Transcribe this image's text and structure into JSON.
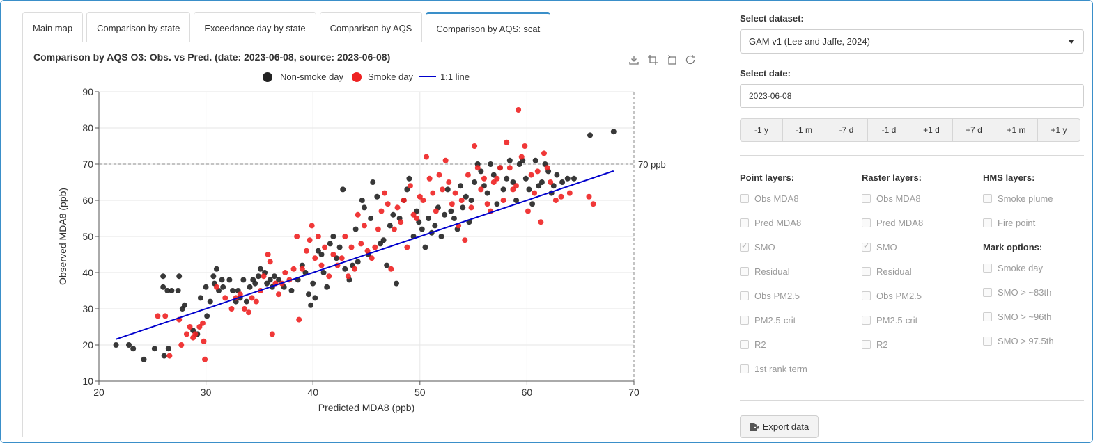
{
  "tabs": [
    "Main map",
    "Comparison by state",
    "Exceedance day by state",
    "Comparison by AQS",
    "Comparison by AQS: scat"
  ],
  "active_tab": 4,
  "chart_title": "Comparison by AQS O3: Obs. vs Pred. (date: 2023-06-08, source: 2023-06-08)",
  "toolbox": [
    "download-icon",
    "zoom-icon",
    "zoom-reset-icon",
    "restore-icon"
  ],
  "controls": {
    "dataset_label": "Select dataset:",
    "dataset_value": "GAM v1 (Lee and Jaffe, 2024)",
    "date_label": "Select date:",
    "date_value": "2023-06-08",
    "steps": [
      "-1 y",
      "-1 m",
      "-7 d",
      "-1 d",
      "+1 d",
      "+7 d",
      "+1 m",
      "+1 y"
    ],
    "point_layers_label": "Point layers:",
    "point_layers": [
      {
        "label": "Obs MDA8",
        "checked": false
      },
      {
        "label": "Pred MDA8",
        "checked": false
      },
      {
        "label": "SMO",
        "checked": true
      },
      {
        "label": "Residual",
        "checked": false
      },
      {
        "label": "Obs PM2.5",
        "checked": false
      },
      {
        "label": "PM2.5-crit",
        "checked": false
      },
      {
        "label": "R2",
        "checked": false
      },
      {
        "label": "1st rank term",
        "checked": false
      }
    ],
    "raster_layers_label": "Raster layers:",
    "raster_layers": [
      {
        "label": "Obs MDA8",
        "checked": false
      },
      {
        "label": "Pred MDA8",
        "checked": false
      },
      {
        "label": "SMO",
        "checked": true
      },
      {
        "label": "Residual",
        "checked": false
      },
      {
        "label": "Obs PM2.5",
        "checked": false
      },
      {
        "label": "PM2.5-crit",
        "checked": false
      },
      {
        "label": "R2",
        "checked": false
      }
    ],
    "hms_layers_label": "HMS layers:",
    "hms_layers": [
      {
        "label": "Smoke plume",
        "checked": false
      },
      {
        "label": "Fire point",
        "checked": false
      }
    ],
    "mark_options_label": "Mark options:",
    "mark_options": [
      {
        "label": "Smoke day",
        "checked": false
      },
      {
        "label": "SMO > ~83th",
        "checked": false
      },
      {
        "label": "SMO > ~96th",
        "checked": false
      },
      {
        "label": "SMO > 97.5th",
        "checked": false
      }
    ],
    "export_label": "Export data"
  },
  "chart_data": {
    "type": "scatter",
    "xlabel": "Predicted MDA8 (ppb)",
    "ylabel": "Observed MDA8 (ppb)",
    "xlim": [
      20,
      70
    ],
    "ylim": [
      10,
      90
    ],
    "xticks": [
      20,
      30,
      40,
      50,
      60,
      70
    ],
    "yticks": [
      10,
      20,
      30,
      40,
      50,
      60,
      70,
      80,
      90
    ],
    "grid": true,
    "legend_position": "top",
    "threshold": {
      "value": 70,
      "label": "70 ppb"
    },
    "colors": {
      "non_smoke": "#222222",
      "smoke": "#ee2222",
      "line": "#0000cc"
    },
    "series": [
      {
        "name": "Non-smoke day",
        "points": [
          [
            21.6,
            20
          ],
          [
            22.8,
            20
          ],
          [
            23.2,
            19
          ],
          [
            24.2,
            16
          ],
          [
            25.2,
            19
          ],
          [
            26.1,
            17
          ],
          [
            26.5,
            19
          ],
          [
            26,
            39
          ],
          [
            26.4,
            35
          ],
          [
            26.8,
            35
          ],
          [
            27.4,
            35
          ],
          [
            27.5,
            39
          ],
          [
            26,
            36
          ],
          [
            27.8,
            30
          ],
          [
            28,
            31
          ],
          [
            28.8,
            24
          ],
          [
            29.2,
            23
          ],
          [
            29.5,
            33
          ],
          [
            30,
            36
          ],
          [
            30.1,
            28
          ],
          [
            30.4,
            32
          ],
          [
            30.8,
            37
          ],
          [
            30.7,
            39
          ],
          [
            31,
            41
          ],
          [
            31.2,
            35
          ],
          [
            31.5,
            38
          ],
          [
            31.6,
            36
          ],
          [
            32.2,
            38
          ],
          [
            32.5,
            35
          ],
          [
            32.8,
            32
          ],
          [
            33,
            35
          ],
          [
            33.2,
            33
          ],
          [
            33.5,
            38
          ],
          [
            33.8,
            32
          ],
          [
            34.1,
            36
          ],
          [
            34.4,
            38
          ],
          [
            34.6,
            37
          ],
          [
            34.9,
            39
          ],
          [
            35.1,
            41
          ],
          [
            35.5,
            40
          ],
          [
            35.7,
            37
          ],
          [
            36,
            38
          ],
          [
            36.2,
            36
          ],
          [
            36.4,
            39
          ],
          [
            36.8,
            38
          ],
          [
            37.3,
            36
          ],
          [
            38,
            35
          ],
          [
            38.6,
            38
          ],
          [
            39,
            42
          ],
          [
            39.3,
            40
          ],
          [
            39.6,
            34
          ],
          [
            39.8,
            31
          ],
          [
            40,
            37
          ],
          [
            40.2,
            33
          ],
          [
            40.5,
            46
          ],
          [
            40.8,
            45
          ],
          [
            41,
            40
          ],
          [
            41.3,
            36
          ],
          [
            41.6,
            48
          ],
          [
            41.9,
            50
          ],
          [
            42.2,
            44
          ],
          [
            42.5,
            47
          ],
          [
            42.8,
            63
          ],
          [
            43,
            41
          ],
          [
            43.4,
            38
          ],
          [
            43.7,
            42
          ],
          [
            44,
            52
          ],
          [
            44.2,
            43
          ],
          [
            44.6,
            60
          ],
          [
            44.8,
            58
          ],
          [
            45.2,
            45
          ],
          [
            45.4,
            55
          ],
          [
            45.6,
            65
          ],
          [
            46,
            61
          ],
          [
            46.3,
            48
          ],
          [
            46.6,
            49
          ],
          [
            46.9,
            42
          ],
          [
            47.2,
            53
          ],
          [
            47.5,
            56
          ],
          [
            47.8,
            37
          ],
          [
            48.1,
            55
          ],
          [
            48.5,
            60
          ],
          [
            48.8,
            63
          ],
          [
            49,
            66
          ],
          [
            49.4,
            50
          ],
          [
            49.7,
            57
          ],
          [
            49.9,
            54
          ],
          [
            50.2,
            52
          ],
          [
            50.5,
            47
          ],
          [
            50.8,
            55
          ],
          [
            51.1,
            51
          ],
          [
            51.4,
            53
          ],
          [
            51.7,
            58
          ],
          [
            52,
            50
          ],
          [
            52.3,
            56
          ],
          [
            52.6,
            63
          ],
          [
            52.9,
            57
          ],
          [
            53.2,
            55
          ],
          [
            53.5,
            52
          ],
          [
            53.8,
            64
          ],
          [
            54,
            58
          ],
          [
            54.3,
            61
          ],
          [
            54.6,
            54
          ],
          [
            54.8,
            60
          ],
          [
            55.1,
            65
          ],
          [
            55.4,
            70
          ],
          [
            55.7,
            68
          ],
          [
            56,
            64
          ],
          [
            56.3,
            62
          ],
          [
            56.6,
            70
          ],
          [
            56.9,
            67
          ],
          [
            57.2,
            59
          ],
          [
            57.5,
            69
          ],
          [
            57.8,
            63
          ],
          [
            58.1,
            66
          ],
          [
            58.4,
            71
          ],
          [
            58.7,
            65
          ],
          [
            59,
            60
          ],
          [
            59.3,
            70
          ],
          [
            59.6,
            71
          ],
          [
            59.9,
            66
          ],
          [
            60.2,
            63
          ],
          [
            60.5,
            59
          ],
          [
            60.8,
            71
          ],
          [
            61.1,
            64
          ],
          [
            61.4,
            65
          ],
          [
            61.7,
            70
          ],
          [
            62,
            68
          ],
          [
            62.3,
            62
          ],
          [
            62.5,
            64
          ],
          [
            62.8,
            67
          ],
          [
            63.3,
            65
          ],
          [
            63.8,
            66
          ],
          [
            64.4,
            66
          ],
          [
            65.9,
            78
          ],
          [
            68.1,
            79
          ]
        ]
      },
      {
        "name": "Smoke day",
        "points": [
          [
            25.5,
            28
          ],
          [
            26.2,
            28
          ],
          [
            26.6,
            17
          ],
          [
            27.5,
            27
          ],
          [
            27.7,
            20
          ],
          [
            28.2,
            23
          ],
          [
            28.5,
            25
          ],
          [
            28.8,
            22
          ],
          [
            29,
            23
          ],
          [
            29.4,
            25
          ],
          [
            29.8,
            21
          ],
          [
            29.9,
            16
          ],
          [
            29.7,
            26
          ],
          [
            31,
            36
          ],
          [
            31.8,
            33
          ],
          [
            32.4,
            30
          ],
          [
            32.8,
            33
          ],
          [
            33.2,
            34
          ],
          [
            33.6,
            30
          ],
          [
            34,
            29
          ],
          [
            34.3,
            33
          ],
          [
            34.7,
            32
          ],
          [
            35.1,
            35
          ],
          [
            35.4,
            39
          ],
          [
            35.8,
            45
          ],
          [
            36,
            43
          ],
          [
            36.2,
            23
          ],
          [
            36.5,
            37
          ],
          [
            36.8,
            34
          ],
          [
            37.1,
            37
          ],
          [
            37.4,
            40
          ],
          [
            37.8,
            38
          ],
          [
            38.2,
            41
          ],
          [
            38.5,
            50
          ],
          [
            38.7,
            27
          ],
          [
            39,
            41
          ],
          [
            39.4,
            46
          ],
          [
            39.7,
            49
          ],
          [
            39.9,
            53
          ],
          [
            40.2,
            44
          ],
          [
            40.5,
            50
          ],
          [
            40.8,
            42
          ],
          [
            41.1,
            47
          ],
          [
            41.5,
            39
          ],
          [
            41.9,
            45
          ],
          [
            42.3,
            42
          ],
          [
            42.7,
            44
          ],
          [
            43,
            50
          ],
          [
            43.3,
            39
          ],
          [
            43.6,
            47
          ],
          [
            43.9,
            41
          ],
          [
            44.2,
            56
          ],
          [
            44.5,
            48
          ],
          [
            44.8,
            53
          ],
          [
            45.1,
            46
          ],
          [
            45.5,
            44
          ],
          [
            45.8,
            47
          ],
          [
            46.1,
            52
          ],
          [
            46.4,
            57
          ],
          [
            46.7,
            62
          ],
          [
            47,
            59
          ],
          [
            47.3,
            41
          ],
          [
            47.6,
            52
          ],
          [
            47.9,
            58
          ],
          [
            48.2,
            54
          ],
          [
            48.5,
            60
          ],
          [
            48.8,
            47
          ],
          [
            49.1,
            64
          ],
          [
            49.4,
            56
          ],
          [
            49.7,
            55
          ],
          [
            50,
            61
          ],
          [
            50.3,
            60
          ],
          [
            50.6,
            72
          ],
          [
            50.9,
            66
          ],
          [
            51.2,
            62
          ],
          [
            51.5,
            57
          ],
          [
            51.8,
            67
          ],
          [
            52.1,
            63
          ],
          [
            52.4,
            71
          ],
          [
            52.7,
            65
          ],
          [
            53,
            59
          ],
          [
            53.3,
            62
          ],
          [
            53.6,
            53
          ],
          [
            53.9,
            60
          ],
          [
            54.2,
            49
          ],
          [
            54.5,
            67
          ],
          [
            54.8,
            58
          ],
          [
            55.1,
            75
          ],
          [
            55.4,
            69
          ],
          [
            55.7,
            63
          ],
          [
            56,
            66
          ],
          [
            56.3,
            59
          ],
          [
            56.6,
            57
          ],
          [
            56.9,
            65
          ],
          [
            57.2,
            66
          ],
          [
            57.5,
            69
          ],
          [
            57.8,
            60
          ],
          [
            58.1,
            76
          ],
          [
            58.4,
            69
          ],
          [
            58.7,
            63
          ],
          [
            59,
            64
          ],
          [
            59.2,
            85
          ],
          [
            59.5,
            72
          ],
          [
            59.8,
            75
          ],
          [
            60.1,
            57
          ],
          [
            60.4,
            67
          ],
          [
            60.7,
            62
          ],
          [
            61,
            68
          ],
          [
            61.3,
            54
          ],
          [
            61.6,
            73
          ],
          [
            61.9,
            69
          ],
          [
            62.2,
            65
          ],
          [
            62.7,
            60
          ],
          [
            63.2,
            61
          ],
          [
            64,
            62
          ],
          [
            65.8,
            61
          ],
          [
            66.2,
            59
          ]
        ]
      },
      {
        "name": "1:1 line",
        "points": [
          [
            21.6,
            21.6
          ],
          [
            68.1,
            68.1
          ]
        ]
      }
    ]
  }
}
